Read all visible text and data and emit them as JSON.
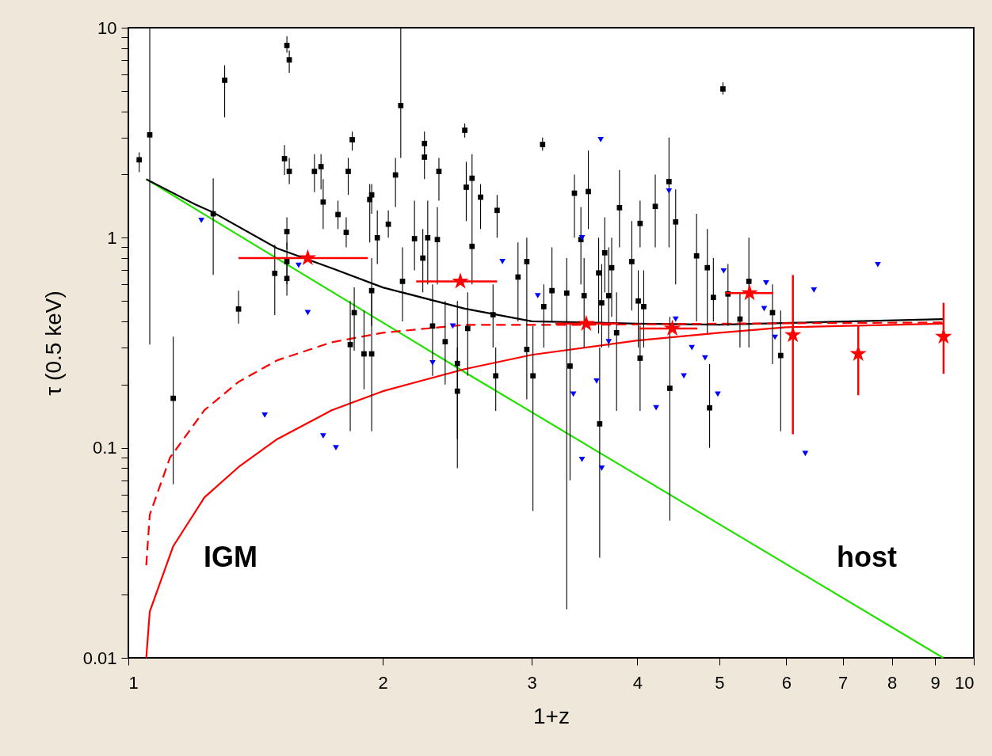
{
  "chart_data": {
    "type": "scatter",
    "xlabel": "1+z",
    "ylabel": "τ (0.5 keV)",
    "log": "xy",
    "grid": false,
    "xlim": [
      1,
      10
    ],
    "xticks": [
      1,
      2,
      3,
      4,
      5,
      6,
      7,
      8,
      9,
      10
    ],
    "ylim": [
      0.01,
      10
    ],
    "yticks": [
      0.01,
      {
        "value": 0.02,
        "label": null
      },
      {
        "value": 0.03,
        "label": null
      },
      {
        "value": 0.04,
        "label": null
      },
      {
        "value": 0.05,
        "label": null
      },
      {
        "value": 0.06,
        "label": null
      },
      {
        "value": 0.07,
        "label": null
      },
      {
        "value": 0.08,
        "label": null
      },
      {
        "value": 0.09,
        "label": null
      },
      0.1,
      {
        "value": 0.2,
        "label": null
      },
      {
        "value": 0.3,
        "label": null
      },
      {
        "value": 0.4,
        "label": null
      },
      {
        "value": 0.5,
        "label": null
      },
      {
        "value": 0.6,
        "label": null
      },
      {
        "value": 0.7,
        "label": null
      },
      {
        "value": 0.8,
        "label": null
      },
      {
        "value": 0.9,
        "label": null
      },
      1,
      {
        "value": 2,
        "label": null
      },
      {
        "value": 3,
        "label": null
      },
      {
        "value": 4,
        "label": null
      },
      {
        "value": 5,
        "label": null
      },
      {
        "value": 6,
        "label": null
      },
      {
        "value": 7,
        "label": null
      },
      {
        "value": 8,
        "label": null
      },
      {
        "value": 9,
        "label": null
      },
      10
    ],
    "annotations": [
      "IGM",
      "host"
    ],
    "series": [
      {
        "type": "line",
        "color": "#22e000",
        "x": [
          1.05,
          2.5,
          9.2
        ],
        "values": [
          1.9,
          0.229,
          0.01
        ]
      },
      {
        "type": "line",
        "color": "#000000",
        "x": [
          1.05,
          1.2,
          1.26,
          1.5,
          1.75,
          2,
          2.5,
          3,
          4,
          5,
          9.2
        ],
        "values": [
          1.9,
          1.44,
          1.32,
          0.89,
          0.71,
          0.58,
          0.46,
          0.4,
          0.39,
          0.386,
          0.41
        ]
      },
      {
        "type": "line",
        "color": "#ff0000",
        "line_style": "dashed",
        "x": [
          1.05,
          1.06,
          1.12,
          1.23,
          1.35,
          1.5,
          1.74,
          2,
          2.5,
          3.5,
          5,
          9.2
        ],
        "values": [
          0.0276,
          0.048,
          0.0897,
          0.151,
          0.206,
          0.261,
          0.318,
          0.353,
          0.385,
          0.385,
          0.39,
          0.395
        ]
      },
      {
        "type": "line",
        "color": "#ff0000",
        "x": [
          1.05,
          1.06,
          1.13,
          1.23,
          1.35,
          1.5,
          1.74,
          2,
          2.5,
          3,
          4,
          5,
          6,
          9.2
        ],
        "values": [
          0.01,
          0.0166,
          0.034,
          0.058,
          0.081,
          0.11,
          0.151,
          0.186,
          0.237,
          0.277,
          0.324,
          0.353,
          0.375,
          0.39
        ]
      },
      {
        "marker": "square",
        "color": "#000000",
        "x": [
          1.03,
          1.06,
          1.13,
          1.3,
          1.35,
          1.26,
          1.49,
          1.54,
          1.53,
          1.55,
          1.54,
          1.55,
          1.54,
          1.54,
          1.66,
          1.69,
          1.7,
          1.77,
          1.82,
          1.84,
          1.81,
          1.85,
          1.83,
          1.93,
          1.94,
          1.94,
          1.94,
          1.9,
          1.97,
          2.03,
          2.07,
          2.1,
          2.11,
          2.18,
          2.24,
          2.24,
          2.23,
          2.26,
          2.29,
          2.33,
          2.32,
          2.45,
          2.45,
          2.37,
          2.5,
          2.51,
          2.55,
          2.55,
          2.61,
          2.52,
          2.7,
          2.72,
          2.73,
          2.89,
          2.96,
          2.96,
          3.01,
          3.09,
          3.1,
          3.17,
          3.3,
          3.33,
          3.37,
          3.46,
          3.5,
          3.43,
          3.6,
          3.63,
          3.66,
          3.61,
          3.7,
          3.73,
          3.78,
          3.81,
          3.94,
          4.01,
          4.03,
          4.07,
          4.03,
          4.2,
          4.36,
          4.37,
          4.44,
          4.7,
          4.84,
          4.87,
          4.92,
          5.05,
          5.12,
          5.29,
          5.42,
          5.78,
          5.91
        ],
        "values": [
          2.35,
          3.09,
          0.172,
          5.62,
          0.458,
          1.3,
          0.677,
          1.07,
          2.38,
          2.07,
          8.23,
          7.03,
          0.77,
          0.64,
          2.07,
          2.18,
          1.48,
          1.29,
          2.07,
          2.93,
          1.06,
          0.44,
          0.31,
          1.52,
          1.6,
          0.56,
          0.28,
          0.28,
          1.0,
          1.16,
          1.99,
          4.26,
          0.62,
          0.99,
          2.81,
          2.42,
          0.8,
          1.0,
          0.38,
          2.07,
          0.98,
          0.252,
          0.186,
          0.32,
          3.25,
          1.74,
          1.92,
          0.91,
          1.56,
          0.37,
          0.43,
          0.22,
          1.35,
          0.65,
          0.77,
          0.294,
          0.22,
          2.78,
          0.47,
          0.56,
          0.545,
          0.245,
          1.63,
          0.53,
          1.66,
          0.98,
          0.68,
          0.49,
          0.848,
          0.13,
          0.53,
          0.72,
          0.353,
          1.39,
          0.77,
          0.5,
          0.267,
          0.47,
          1.17,
          1.41,
          1.85,
          0.192,
          1.19,
          0.82,
          0.72,
          0.155,
          0.52,
          5.11,
          0.54,
          0.41,
          0.62,
          0.44,
          0.275
        ],
        "errors": [
          [
            2.05,
            2.55
          ],
          [
            0.31,
            10
          ],
          [
            0.067,
            0.338
          ],
          [
            3.74,
            6.62
          ],
          [
            0.39,
            0.56
          ],
          [
            0.665,
            1.92
          ],
          [
            0.428,
            0.925
          ],
          [
            0.88,
            1.25
          ],
          [
            1.99,
            2.76
          ],
          [
            1.8,
            2.4
          ],
          [
            7.6,
            9.1
          ],
          [
            6.1,
            7.8
          ],
          [
            0.6,
            0.95
          ],
          [
            0.53,
            0.8
          ],
          [
            1.65,
            2.5
          ],
          [
            1.7,
            2.5
          ],
          [
            1.1,
            1.9
          ],
          [
            1.1,
            1.5
          ],
          [
            1.6,
            2.4
          ],
          [
            2.6,
            3.2
          ],
          [
            0.9,
            1.25
          ],
          [
            0.29,
            0.58
          ],
          [
            0.12,
            0.5
          ],
          [
            0.95,
            1.8
          ],
          [
            1.3,
            1.8
          ],
          [
            0.38,
            0.8
          ],
          [
            0.12,
            0.55
          ],
          [
            0.19,
            0.45
          ],
          [
            0.75,
            1.35
          ],
          [
            1.0,
            1.35
          ],
          [
            1.4,
            2.4
          ],
          [
            2.4,
            10
          ],
          [
            0.4,
            0.9
          ],
          [
            0.7,
            1.5
          ],
          [
            2.5,
            3.2
          ],
          [
            1.9,
            2.8
          ],
          [
            0.55,
            1.1
          ],
          [
            0.6,
            1.5
          ],
          [
            0.22,
            0.6
          ],
          [
            1.5,
            2.4
          ],
          [
            0.6,
            1.4
          ],
          [
            0.11,
            0.5
          ],
          [
            0.08,
            0.3
          ],
          [
            0.2,
            0.5
          ],
          [
            3.0,
            3.5
          ],
          [
            1.2,
            2.3
          ],
          [
            1.3,
            2.5
          ],
          [
            0.6,
            1.3
          ],
          [
            1.1,
            1.8
          ],
          [
            0.22,
            0.55
          ],
          [
            0.3,
            0.6
          ],
          [
            0.15,
            0.3
          ],
          [
            1.0,
            1.6
          ],
          [
            0.4,
            0.95
          ],
          [
            0.5,
            1.0
          ],
          [
            0.17,
            0.5
          ],
          [
            0.05,
            0.38
          ],
          [
            2.6,
            3.0
          ],
          [
            0.3,
            0.6
          ],
          [
            0.4,
            0.9
          ],
          [
            0.017,
            0.8
          ],
          [
            0.07,
            0.4
          ],
          [
            1.0,
            2.0
          ],
          [
            0.3,
            0.8
          ],
          [
            1.1,
            2.6
          ],
          [
            0.6,
            1.4
          ],
          [
            0.35,
            1.0
          ],
          [
            0.3,
            0.75
          ],
          [
            0.55,
            1.25
          ],
          [
            0.03,
            0.3
          ],
          [
            0.3,
            0.9
          ],
          [
            0.42,
            1.0
          ],
          [
            0.15,
            0.55
          ],
          [
            0.9,
            2.1
          ],
          [
            0.45,
            1.2
          ],
          [
            0.3,
            0.7
          ],
          [
            0.15,
            0.38
          ],
          [
            0.3,
            0.7
          ],
          [
            0.9,
            1.5
          ],
          [
            0.9,
            2.0
          ],
          [
            0.9,
            3.0
          ],
          [
            0.045,
            0.42
          ],
          [
            0.6,
            1.7
          ],
          [
            0.4,
            1.3
          ],
          [
            0.35,
            1.1
          ],
          [
            0.1,
            0.25
          ],
          [
            0.4,
            0.8
          ],
          [
            4.8,
            5.5
          ],
          [
            0.38,
            0.75
          ],
          [
            0.3,
            0.55
          ],
          [
            0.3,
            1.0
          ],
          [
            0.25,
            0.6
          ],
          [
            0.12,
            0.45
          ]
        ]
      },
      {
        "marker": "triangle",
        "color": "#0000ff",
        "x": [
          1.22,
          1.59,
          1.63,
          1.45,
          1.7,
          1.76,
          2.77,
          2.42,
          2.29,
          3.05,
          3.44,
          3.62,
          3.7,
          3.58,
          3.36,
          3.44,
          3.63,
          4.36,
          4.44,
          4.64,
          4.81,
          4.54,
          4.21,
          4.98,
          5.06,
          5.68,
          5.65,
          5.82,
          6.47,
          7.7,
          6.32
        ],
        "values": [
          1.21,
          0.74,
          0.44,
          0.143,
          0.114,
          0.1,
          0.77,
          0.38,
          0.254,
          0.53,
          1.0,
          2.93,
          0.32,
          0.208,
          0.18,
          0.088,
          0.08,
          1.67,
          0.41,
          0.3,
          0.268,
          0.22,
          0.155,
          0.18,
          0.695,
          0.61,
          0.46,
          0.336,
          0.564,
          0.745,
          0.094
        ]
      },
      {
        "marker": "star",
        "color": "#ff0000",
        "x": [
          1.63,
          2.47,
          3.48,
          4.4,
          5.43,
          6.11,
          7.3,
          9.21
        ],
        "values": [
          0.8,
          0.62,
          0.39,
          0.37,
          0.545,
          0.344,
          0.28,
          0.338
        ],
        "xerrors": [
          [
            1.35,
            1.92
          ],
          [
            2.19,
            2.73
          ],
          [
            3.2,
            3.8
          ],
          [
            4.02,
            4.71
          ],
          [
            5.08,
            5.79
          ],
          null,
          null,
          null
        ],
        "errors": [
          null,
          null,
          null,
          null,
          null,
          [
            0.116,
            0.665
          ],
          [
            0.178,
            0.38
          ],
          [
            0.225,
            0.49
          ]
        ]
      }
    ]
  }
}
